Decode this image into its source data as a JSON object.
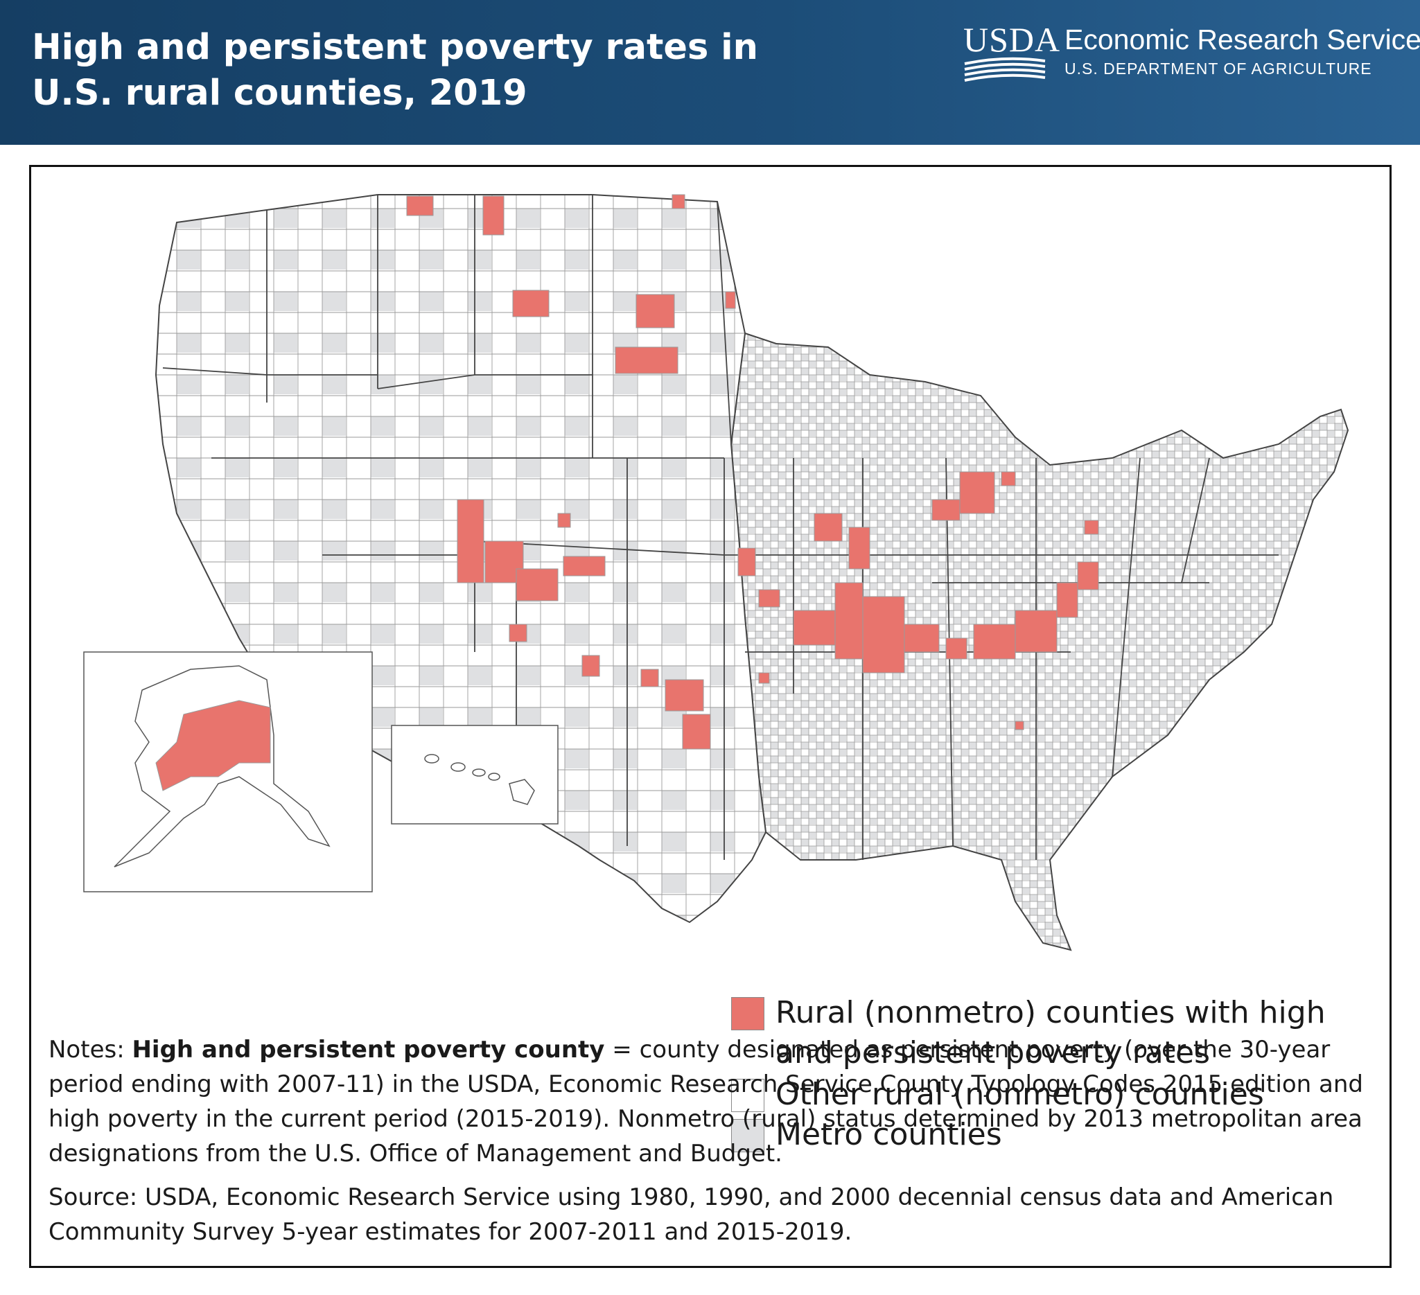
{
  "header": {
    "title": "High and persistent poverty rates in U.S. rural counties, 2019",
    "brand_logo": "USDA",
    "brand_name": "Economic Research Service",
    "brand_sub": "U.S. DEPARTMENT OF AGRICULTURE"
  },
  "colors": {
    "high_persistent_poverty": "#e8746d",
    "other_rural": "#ffffff",
    "metro": "#dfe0e2",
    "header_bg": "#1c4d78"
  },
  "legend": {
    "items": [
      {
        "key": "high_persistent_poverty",
        "label": "Rural (nonmetro) counties with high and persistent poverty rates"
      },
      {
        "key": "other_rural",
        "label": "Other rural (nonmetro) counties"
      },
      {
        "key": "metro",
        "label": "Metro counties"
      }
    ]
  },
  "notes": {
    "prefix": "Notes: ",
    "term": "High and persistent poverty county",
    "definition": " = county designated as persistent poverty (over the 30-year period ending with 2007-11) in the USDA, Economic Research Service County Typology Codes 2015 edition and high poverty in the current period (2015-2019). Nonmetro (rural) status determined by 2013 metropolitan area designations from the U.S. Office of Management and Budget."
  },
  "source": "Source: USDA, Economic Research Service using 1980, 1990, and 2000 decennial census data and American Community Survey 5-year estimates for 2007-2011 and 2015-2019.",
  "map": {
    "regions": [
      "Contiguous United States",
      "Alaska",
      "Hawaii"
    ]
  }
}
